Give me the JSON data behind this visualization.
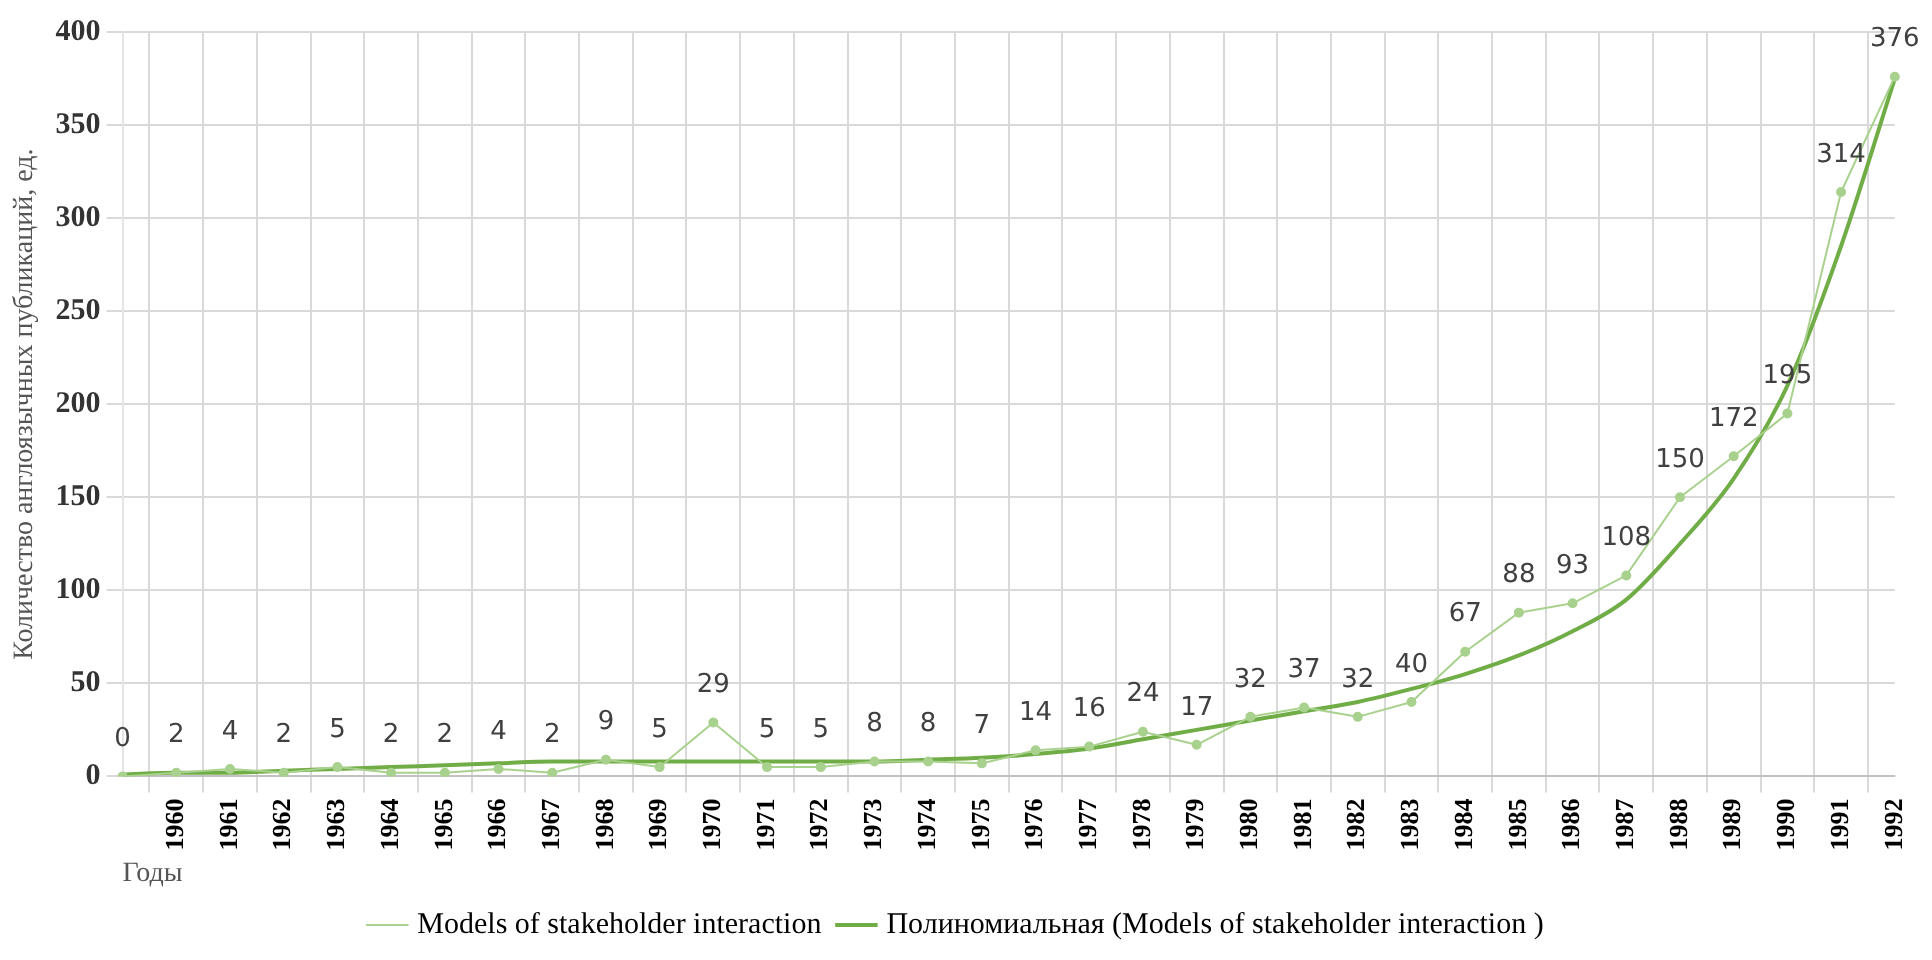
{
  "chart_data": {
    "type": "line",
    "xlabel": "Годы",
    "ylabel": "Количество англоязычных публикаций, ед.",
    "categories": [
      null,
      "1960",
      "1961",
      "1962",
      "1963",
      "1964",
      "1965",
      "1966",
      "1967",
      "1968",
      "1969",
      "1970",
      "1971",
      "1972",
      "1973",
      "1974",
      "1975",
      "1976",
      "1977",
      "1978",
      "1979",
      "1980",
      "1981",
      "1982",
      "1983",
      "1984",
      "1985",
      "1986",
      "1987",
      "1988",
      "1989",
      "1990",
      "1991",
      "1992"
    ],
    "series": [
      {
        "name": "Models of stakeholder interaction",
        "color": "#a9d18e",
        "marker": "circle",
        "values": [
          0,
          2,
          4,
          2,
          5,
          2,
          2,
          4,
          2,
          9,
          5,
          29,
          5,
          5,
          8,
          8,
          7,
          14,
          16,
          24,
          17,
          32,
          37,
          32,
          40,
          67,
          88,
          93,
          108,
          150,
          172,
          195,
          314,
          376
        ],
        "value_labels": [
          "0",
          "2",
          "4",
          "2",
          "5",
          "2",
          "2",
          "4",
          "2",
          "9",
          "5",
          "29",
          "5",
          "5",
          "8",
          "8",
          "7",
          "14",
          "16",
          "24",
          "17",
          "32",
          "37",
          "32",
          "40",
          "67",
          "88",
          "93",
          "108",
          "150",
          "172",
          "195",
          "314",
          "376"
        ]
      },
      {
        "name": "Полиномиальная (Models of stakeholder interaction )",
        "type": "line",
        "color": "#70ad47",
        "marker": "none",
        "values": [
          1,
          2,
          2,
          3,
          4,
          5,
          6,
          7,
          8,
          8,
          8,
          8,
          8,
          8,
          8,
          9,
          10,
          12,
          15,
          20,
          25,
          30,
          35,
          40,
          47,
          55,
          65,
          78,
          95,
          125,
          160,
          210,
          285,
          375
        ]
      }
    ],
    "ylim": [
      0,
      400
    ],
    "yticks": [
      0,
      50,
      100,
      150,
      200,
      250,
      300,
      350,
      400
    ],
    "grid": true,
    "legend": "bottom"
  }
}
